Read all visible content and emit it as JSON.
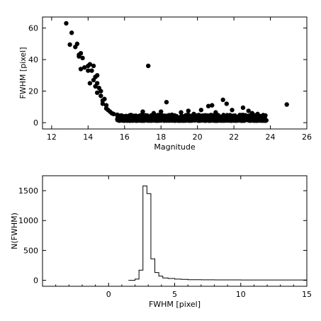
{
  "chart_data": [
    {
      "type": "scatter",
      "title": "",
      "xlabel": "Magnitude",
      "ylabel": "FWHM [pixel]",
      "xlim": [
        11.5,
        26
      ],
      "ylim": [
        -4,
        67
      ],
      "x_ticks": [
        12,
        14,
        16,
        18,
        20,
        22,
        24,
        26
      ],
      "y_ticks": [
        0,
        20,
        40,
        60
      ],
      "grid": false,
      "marker_color": "#000000",
      "points": [
        [
          12.8,
          63
        ],
        [
          13.1,
          57
        ],
        [
          13.0,
          49.5
        ],
        [
          13.3,
          48
        ],
        [
          13.4,
          50
        ],
        [
          13.5,
          43
        ],
        [
          13.6,
          44
        ],
        [
          13.5,
          42
        ],
        [
          13.7,
          41
        ],
        [
          13.6,
          34
        ],
        [
          13.8,
          35
        ],
        [
          14.0,
          36
        ],
        [
          14.1,
          37
        ],
        [
          14.0,
          33
        ],
        [
          14.2,
          33
        ],
        [
          14.3,
          36
        ],
        [
          14.1,
          25
        ],
        [
          14.3,
          27
        ],
        [
          14.4,
          29
        ],
        [
          14.5,
          30
        ],
        [
          14.4,
          23
        ],
        [
          14.5,
          25
        ],
        [
          14.6,
          22
        ],
        [
          14.7,
          20
        ],
        [
          14.5,
          19
        ],
        [
          14.7,
          17
        ],
        [
          14.8,
          14
        ],
        [
          14.9,
          15
        ],
        [
          14.8,
          12
        ],
        [
          15.0,
          11
        ],
        [
          15.0,
          9
        ],
        [
          15.1,
          8
        ],
        [
          15.2,
          7
        ],
        [
          15.3,
          6
        ],
        [
          15.4,
          5.5
        ],
        [
          15.6,
          5
        ],
        [
          15.8,
          4.5
        ],
        [
          16.0,
          4
        ],
        [
          16.2,
          3.8
        ],
        [
          16.5,
          3.5
        ],
        [
          16.8,
          3.5
        ],
        [
          17.3,
          36
        ],
        [
          18.3,
          13
        ],
        [
          20.6,
          10.5
        ],
        [
          20.8,
          11
        ],
        [
          21.4,
          14.5
        ],
        [
          21.6,
          12
        ],
        [
          22.5,
          9.5
        ],
        [
          24.9,
          11.5
        ],
        [
          17.0,
          7
        ],
        [
          17.6,
          6
        ],
        [
          18.0,
          7
        ],
        [
          18.6,
          5
        ],
        [
          19.1,
          6.5
        ],
        [
          19.5,
          7.5
        ],
        [
          19.8,
          5.5
        ],
        [
          20.2,
          8
        ],
        [
          21.0,
          6.5
        ],
        [
          21.9,
          8
        ],
        [
          22.8,
          7.5
        ],
        [
          23.0,
          6
        ],
        [
          23.3,
          5.5
        ],
        [
          23.6,
          4.5
        ]
      ],
      "dense_band": {
        "x_range": [
          15.6,
          23.8
        ],
        "y_range": [
          1.2,
          5.0
        ]
      }
    },
    {
      "type": "bar",
      "style": "step",
      "title": "",
      "xlabel": "FWHM [pixel]",
      "ylabel": "N(FWHM)",
      "xlim": [
        -5,
        15
      ],
      "ylim": [
        -100,
        1750
      ],
      "x_ticks": [
        0,
        5,
        10,
        15
      ],
      "y_ticks": [
        0,
        500,
        1000,
        1500
      ],
      "grid": false,
      "line_color": "#000000",
      "bin_edges": [
        1.5,
        2.0,
        2.3,
        2.6,
        2.9,
        3.2,
        3.5,
        3.8,
        4.1,
        4.5,
        5.0,
        5.5,
        6.0,
        7.0,
        8.0,
        10.0,
        15.0
      ],
      "counts": [
        0,
        20,
        170,
        1580,
        1450,
        360,
        130,
        70,
        40,
        30,
        20,
        15,
        10,
        8,
        6,
        5
      ]
    }
  ]
}
